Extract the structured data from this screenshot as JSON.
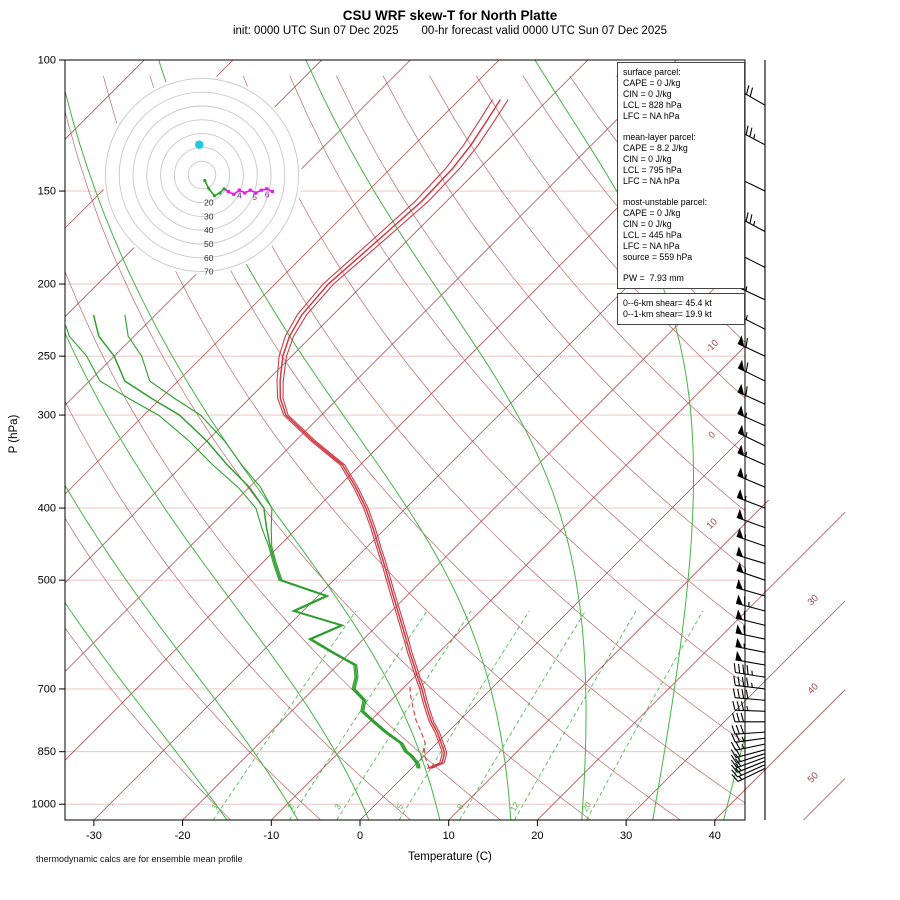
{
  "chart_data": {
    "type": "skew-t-log-p sounding",
    "title": "CSU WRF skew-T for North Platte",
    "subtitle": "init: 0000 UTC Sun 07 Dec 2025  00-hr forecast valid 0000 UTC Sun 07 Dec 2025",
    "xlabel": "Temperature (C)",
    "ylabel": "P (hPa)",
    "footnote": "thermodynamic calcs are for ensemble mean profile",
    "pressure_ticks_hPa": [
      100,
      150,
      200,
      250,
      300,
      400,
      500,
      700,
      850,
      1000
    ],
    "temp_ticks_C": [
      -30,
      -20,
      -10,
      0,
      10,
      20,
      30,
      40
    ],
    "isotherm_grid": {
      "min_C": -110,
      "max_C": 50,
      "step_C": 10
    },
    "isotherm_edge_labels_C": [
      -10,
      0,
      10,
      30,
      40,
      50
    ],
    "dry_adiabats_theta_K": {
      "min": 255,
      "max": 445,
      "step": 10
    },
    "moist_adiabats_start_C_at_1050hPa": [
      -15,
      -7,
      1,
      9,
      17,
      25,
      33,
      41
    ],
    "mixing_ratio_lines_gkg": [
      1,
      2,
      3,
      5,
      8,
      12,
      20
    ],
    "sounding_levels_p_T_Td": [
      [
        895,
        2.0,
        0.8
      ],
      [
        880,
        2.8,
        0.0
      ],
      [
        860,
        2.2,
        -1.5
      ],
      [
        850,
        1.8,
        -2.5
      ],
      [
        828,
        0.5,
        -4.0
      ],
      [
        800,
        -1.2,
        -7.0
      ],
      [
        775,
        -3.0,
        -9.5
      ],
      [
        750,
        -4.6,
        -12.0
      ],
      [
        725,
        -6.2,
        -13.0
      ],
      [
        700,
        -7.8,
        -15.5
      ],
      [
        675,
        -9.6,
        -16.5
      ],
      [
        650,
        -11.4,
        -18.0
      ],
      [
        625,
        -13.3,
        -22.0
      ],
      [
        600,
        -15.2,
        -26.0
      ],
      [
        575,
        -17.2,
        -24.0
      ],
      [
        550,
        -19.3,
        -31.0
      ],
      [
        525,
        -21.5,
        -29.0
      ],
      [
        500,
        -23.8,
        -36.0
      ],
      [
        475,
        -26.2,
        -38.5
      ],
      [
        450,
        -28.8,
        -41.0
      ],
      [
        425,
        -31.5,
        -43.5
      ],
      [
        400,
        -34.5,
        -46.0
      ],
      [
        375,
        -38.0,
        -50.0
      ],
      [
        350,
        -42.0,
        -55.0
      ],
      [
        325,
        -48.0,
        -60.0
      ],
      [
        300,
        -54.0,
        -66.0
      ],
      [
        285,
        -56.5,
        -71.0
      ],
      [
        270,
        -58.5,
        -76.0
      ],
      [
        250,
        -61.0,
        -80.0
      ],
      [
        235,
        -62.5,
        -84.0
      ],
      [
        220,
        -63.5,
        -87.0
      ],
      [
        200,
        -64.0,
        null
      ],
      [
        185,
        -63.6,
        null
      ],
      [
        170,
        -63.2,
        null
      ],
      [
        155,
        -62.8,
        null
      ],
      [
        140,
        -63.0,
        null
      ],
      [
        130,
        -63.6,
        null
      ],
      [
        120,
        -64.6,
        null
      ],
      [
        113,
        -65.4,
        null
      ]
    ],
    "parcel_trace_p_T": [
      [
        895,
        2.0
      ],
      [
        860,
        0.0
      ],
      [
        828,
        -1.3
      ],
      [
        800,
        -3.0
      ],
      [
        770,
        -5.0
      ],
      [
        740,
        -6.8
      ],
      [
        710,
        -8.6
      ],
      [
        695,
        -9.4
      ]
    ],
    "parcel_vapor_p_Td": [
      [
        895,
        0.8
      ],
      [
        828,
        -1.3
      ]
    ],
    "winds_p_spd_kt_dir_deg": [
      [
        115,
        40,
        300
      ],
      [
        130,
        45,
        298
      ],
      [
        150,
        50,
        296
      ],
      [
        170,
        45,
        298
      ],
      [
        190,
        50,
        297
      ],
      [
        210,
        55,
        295
      ],
      [
        230,
        55,
        297
      ],
      [
        250,
        60,
        295
      ],
      [
        270,
        60,
        296
      ],
      [
        290,
        60,
        294
      ],
      [
        310,
        55,
        294
      ],
      [
        330,
        55,
        296
      ],
      [
        350,
        55,
        294
      ],
      [
        375,
        55,
        293
      ],
      [
        400,
        55,
        291
      ],
      [
        425,
        50,
        290
      ],
      [
        450,
        55,
        289
      ],
      [
        475,
        55,
        287
      ],
      [
        500,
        55,
        289
      ],
      [
        525,
        60,
        286
      ],
      [
        550,
        65,
        285
      ],
      [
        575,
        60,
        284
      ],
      [
        600,
        60,
        282
      ],
      [
        625,
        55,
        281
      ],
      [
        650,
        50,
        280
      ],
      [
        675,
        45,
        279
      ],
      [
        700,
        45,
        277
      ],
      [
        725,
        40,
        275
      ],
      [
        750,
        35,
        272
      ],
      [
        775,
        30,
        270
      ],
      [
        800,
        28,
        266
      ],
      [
        815,
        25,
        262
      ],
      [
        830,
        24,
        258
      ],
      [
        845,
        22,
        255
      ],
      [
        855,
        22,
        252
      ],
      [
        865,
        20,
        250
      ],
      [
        875,
        20,
        248
      ],
      [
        885,
        18,
        246
      ],
      [
        895,
        16,
        244
      ]
    ],
    "hodograph": {
      "ring_interval_kt": 10,
      "max_ring_kt": 70,
      "ring_labels_kt": [
        20,
        30,
        40,
        50,
        60,
        70
      ],
      "trace_uv_kt": [
        [
          2,
          -4
        ],
        [
          5,
          -10
        ],
        [
          9,
          -15
        ],
        [
          13,
          -13
        ],
        [
          16,
          -10
        ],
        [
          19,
          -12
        ],
        [
          23,
          -14
        ],
        [
          27,
          -11
        ],
        [
          31,
          -13
        ],
        [
          35,
          -11
        ],
        [
          39,
          -13
        ],
        [
          43,
          -11
        ],
        [
          47,
          -10
        ],
        [
          51,
          -12
        ]
      ],
      "height_labels": [
        {
          "label": "4",
          "u": 27,
          "v": -15
        },
        {
          "label": "5",
          "u": 38,
          "v": -16
        },
        {
          "label": "6",
          "u": 47,
          "v": -14
        }
      ],
      "storm_motion_uv_kt": [
        -2,
        22
      ]
    },
    "colors": {
      "grid_red": "#a84343",
      "pressure_line": "#e9bcbc",
      "moist_green": "#46b446",
      "mixing_green": "#52bd52",
      "temp_red": "#cf3a45",
      "dew_green": "#2f9e2f",
      "magenta": "#e619e6",
      "cyan": "#19ccde",
      "purple": "#7a1fa2",
      "barb_black": "#000000"
    }
  },
  "info_panel": {
    "parcel_lines": [
      "surface parcel:",
      "CAPE = 0 J/kg",
      "CIN = 0 J/kg",
      "LCL = 828 hPa",
      "LFC = NA hPa",
      "",
      "mean-layer parcel:",
      "CAPE = 8.2 J/kg",
      "CIN = 0 J/kg",
      "LCL = 795 hPa",
      "LFC = NA hPa",
      "",
      "most-unstable parcel:",
      "CAPE = 0 J/kg",
      "CIN = 0 J/kg",
      "LCL = 445 hPa",
      "LFC = NA hPa",
      "source = 559 hPa",
      "",
      "PW =  7.93 mm"
    ],
    "shear_lines": [
      "0--6-km shear= 45.4 kt",
      "0--1-km shear= 19.9 kt"
    ]
  }
}
